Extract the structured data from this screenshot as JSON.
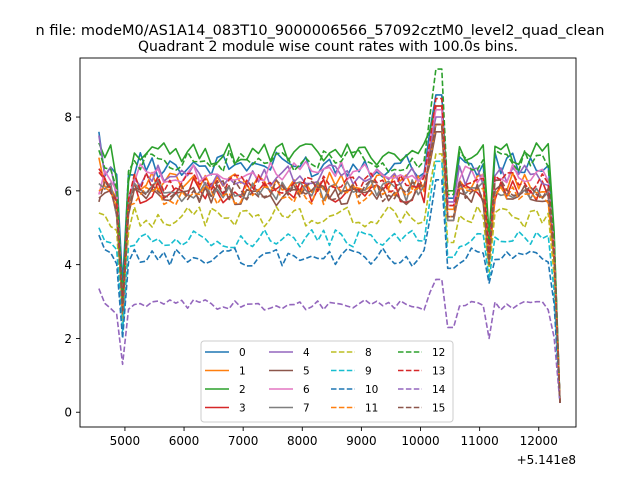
{
  "chart_data": {
    "type": "line",
    "suptitle": "n file: modeM0/AS1A14_083T10_9000006566_57092cztM0_level2_quad_clean",
    "title": "Quadrant 2 module wise count rates with 100.0s bins.",
    "xlabel": "",
    "ylabel": "",
    "x_offset_label": "+5.141e8",
    "xlim": [
      4240,
      12630
    ],
    "ylim": [
      -0.4,
      9.6
    ],
    "x_ticks": [
      5000,
      6000,
      7000,
      8000,
      9000,
      10000,
      11000,
      12000
    ],
    "x_tick_labels": [
      "5000",
      "6000",
      "7000",
      "8000",
      "9000",
      "10000",
      "11000",
      "12000"
    ],
    "y_ticks": [
      0,
      2,
      4,
      6,
      8
    ],
    "y_tick_labels": [
      "0",
      "2",
      "4",
      "6",
      "8"
    ],
    "grid": false,
    "legend_position": "lower-center",
    "legend_columns": 4,
    "x_range": {
      "start": 4560,
      "step": 100,
      "count": 79
    },
    "series": [
      {
        "name": "0",
        "color": "#1f77b4",
        "dash": "solid",
        "base": 6.7,
        "amp": 0.35,
        "first": 7.6,
        "dip1": 3.5,
        "peak": 8.6,
        "dip2": 5.8,
        "dip3": 4.2
      },
      {
        "name": "1",
        "color": "#ff7f0e",
        "dash": "solid",
        "base": 6.2,
        "amp": 0.3,
        "first": 6.9,
        "dip1": 2.5,
        "peak": 7.8,
        "dip2": 5.5,
        "dip3": 4.5
      },
      {
        "name": "2",
        "color": "#2ca02c",
        "dash": "solid",
        "base": 7.0,
        "amp": 0.3,
        "first": 7.3,
        "dip1": 3.0,
        "peak": 8.3,
        "dip2": 6.0,
        "dip3": 4.8
      },
      {
        "name": "3",
        "color": "#d62728",
        "dash": "solid",
        "base": 6.0,
        "amp": 0.35,
        "first": 6.5,
        "dip1": 2.8,
        "peak": 8.3,
        "dip2": 5.2,
        "dip3": 4.3
      },
      {
        "name": "4",
        "color": "#9467bd",
        "dash": "solid",
        "base": 6.4,
        "amp": 0.3,
        "first": 7.5,
        "dip1": 2.7,
        "peak": 8.0,
        "dip2": 5.7,
        "dip3": 4.4
      },
      {
        "name": "5",
        "color": "#8c564b",
        "dash": "solid",
        "base": 5.9,
        "amp": 0.3,
        "first": 5.8,
        "dip1": 2.6,
        "peak": 7.6,
        "dip2": 5.3,
        "dip3": 4.0
      },
      {
        "name": "6",
        "color": "#e377c2",
        "dash": "solid",
        "base": 6.5,
        "amp": 0.3,
        "first": 5.9,
        "dip1": 2.9,
        "peak": 8.2,
        "dip2": 5.6,
        "dip3": 4.5
      },
      {
        "name": "7",
        "color": "#7f7f7f",
        "dash": "solid",
        "base": 6.0,
        "amp": 0.3,
        "first": 6.2,
        "dip1": 2.8,
        "peak": 7.8,
        "dip2": 5.2,
        "dip3": 4.2
      },
      {
        "name": "8",
        "color": "#bcbd22",
        "dash": "dashed",
        "base": 5.3,
        "amp": 0.3,
        "first": 5.4,
        "dip1": 2.3,
        "peak": 7.0,
        "dip2": 4.6,
        "dip3": 3.8
      },
      {
        "name": "9",
        "color": "#17becf",
        "dash": "dashed",
        "base": 4.7,
        "amp": 0.25,
        "first": 5.0,
        "dip1": 2.2,
        "peak": 6.8,
        "dip2": 4.2,
        "dip3": 3.6
      },
      {
        "name": "10",
        "color": "#1f77b4",
        "dash": "dashed",
        "base": 4.2,
        "amp": 0.25,
        "first": 4.8,
        "dip1": 2.0,
        "peak": 6.3,
        "dip2": 3.9,
        "dip3": 3.5
      },
      {
        "name": "11",
        "color": "#ff7f0e",
        "dash": "dashed",
        "base": 5.9,
        "amp": 0.3,
        "first": 6.0,
        "dip1": 2.8,
        "peak": 7.8,
        "dip2": 5.3,
        "dip3": 4.1
      },
      {
        "name": "12",
        "color": "#2ca02c",
        "dash": "dashed",
        "base": 6.8,
        "amp": 0.3,
        "first": 7.1,
        "dip1": 3.0,
        "peak": 9.3,
        "dip2": 5.9,
        "dip3": 4.6
      },
      {
        "name": "13",
        "color": "#d62728",
        "dash": "dashed",
        "base": 6.2,
        "amp": 0.3,
        "first": 6.6,
        "dip1": 2.9,
        "peak": 8.5,
        "dip2": 5.6,
        "dip3": 4.3
      },
      {
        "name": "14",
        "color": "#9467bd",
        "dash": "dashed",
        "base": 2.9,
        "amp": 0.15,
        "first": 3.35,
        "dip1": 1.3,
        "peak": 3.6,
        "dip2": 2.3,
        "dip3": 2.0
      },
      {
        "name": "15",
        "color": "#8c564b",
        "dash": "dashed",
        "base": 6.0,
        "amp": 0.3,
        "first": 5.7,
        "dip1": 2.7,
        "peak": 7.8,
        "dip2": 5.3,
        "dip3": 4.0
      }
    ]
  }
}
